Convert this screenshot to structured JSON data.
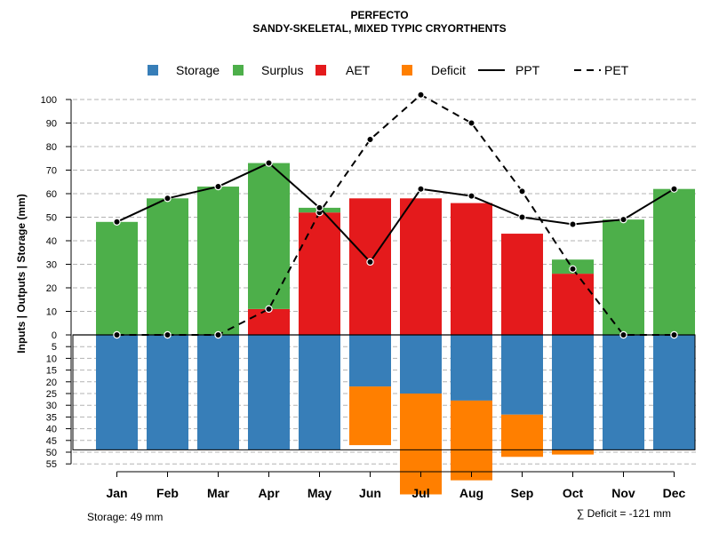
{
  "chart_data": {
    "type": "bar",
    "title": "PERFECTO",
    "subtitle": "SANDY-SKELETAL, MIXED TYPIC CRYORTHENTS",
    "ylabel": "Inputs | Outputs | Storage    (mm)",
    "categories": [
      "Jan",
      "Feb",
      "Mar",
      "Apr",
      "May",
      "Jun",
      "Jul",
      "Aug",
      "Sep",
      "Oct",
      "Nov",
      "Dec"
    ],
    "legend": [
      {
        "name": "Storage",
        "kind": "box",
        "color": "#377EB8"
      },
      {
        "name": "Surplus",
        "kind": "box",
        "color": "#4DAF4A"
      },
      {
        "name": "AET",
        "kind": "box",
        "color": "#E41A1C"
      },
      {
        "name": "Deficit",
        "kind": "box",
        "color": "#FF7F00"
      },
      {
        "name": "PPT",
        "kind": "solid-line",
        "color": "#000000"
      },
      {
        "name": "PET",
        "kind": "dashed-line",
        "color": "#000000"
      }
    ],
    "series": [
      {
        "name": "AET",
        "values": [
          0,
          0,
          0,
          11,
          52,
          58,
          58,
          56,
          43,
          26,
          0,
          0
        ]
      },
      {
        "name": "Surplus",
        "values": [
          48,
          58,
          63,
          62,
          2,
          0,
          0,
          0,
          0,
          6,
          49,
          62
        ]
      },
      {
        "name": "Storage",
        "values": [
          49,
          49,
          49,
          49,
          49,
          22,
          25,
          28,
          34,
          49,
          49,
          49
        ]
      },
      {
        "name": "Deficit",
        "values": [
          0,
          0,
          0,
          0,
          0,
          25,
          43,
          34,
          18,
          2,
          0,
          0
        ]
      },
      {
        "name": "PPT",
        "values": [
          48,
          58,
          63,
          73,
          54,
          31,
          62,
          59,
          50,
          47,
          49,
          62
        ]
      },
      {
        "name": "PET",
        "values": [
          0,
          0,
          0,
          11,
          52,
          83,
          102,
          90,
          61,
          28,
          0,
          0
        ]
      }
    ],
    "y_upper_ticks": [
      0,
      10,
      20,
      30,
      40,
      50,
      60,
      70,
      80,
      90,
      100
    ],
    "y_lower_ticks": [
      5,
      10,
      15,
      20,
      25,
      30,
      35,
      40,
      45,
      50,
      55
    ],
    "ylim_upper": [
      0,
      106
    ],
    "ylim_lower": [
      0,
      55
    ],
    "storage_capacity": 49,
    "grid": true,
    "legend_position": "top"
  },
  "footer": {
    "storage_text": "Storage: 49 mm",
    "deficit_text": "∑ Deficit = -121 mm"
  }
}
